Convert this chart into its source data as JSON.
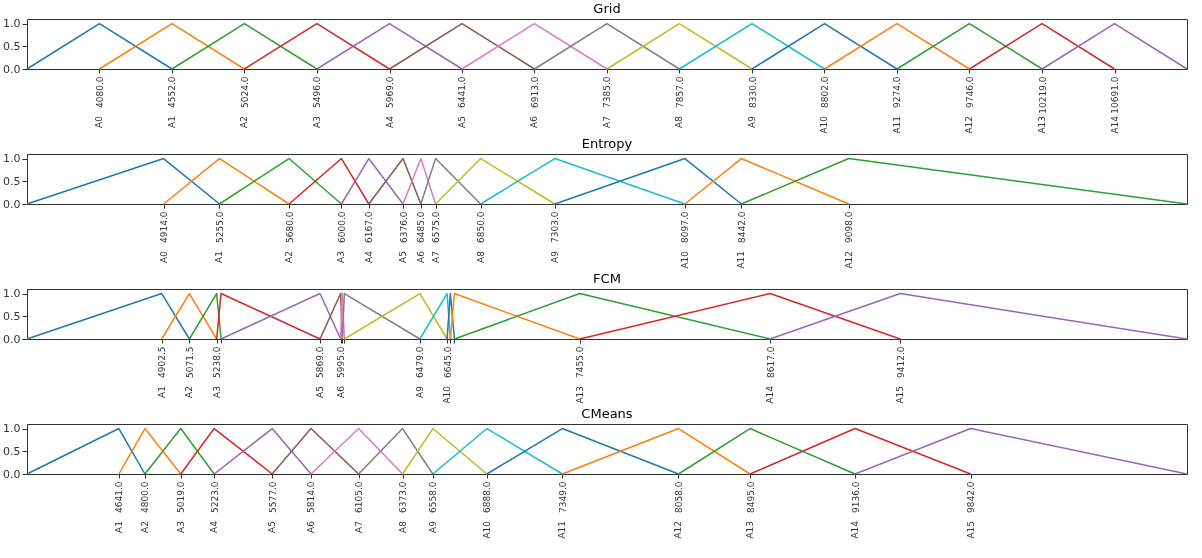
{
  "chart_data": [
    {
      "type": "line",
      "title": "Grid",
      "xlim": [
        3608,
        11163
      ],
      "ylim": [
        0,
        1.1
      ],
      "xticks": [
        {
          "value": 4080,
          "label": "4080.0"
        },
        {
          "value": 4552,
          "label": "4552.0"
        },
        {
          "value": 5024,
          "label": "5024.0"
        },
        {
          "value": 5496,
          "label": "5496.0"
        },
        {
          "value": 5969,
          "label": "5969.0"
        },
        {
          "value": 6441,
          "label": "6441.0"
        },
        {
          "value": 6913,
          "label": "6913.0"
        },
        {
          "value": 7385,
          "label": "7385.0"
        },
        {
          "value": 7857,
          "label": "7857.0"
        },
        {
          "value": 8330,
          "label": "8330.0"
        },
        {
          "value": 8802,
          "label": "8802.0"
        },
        {
          "value": 9274,
          "label": "9274.0"
        },
        {
          "value": 9746,
          "label": "9746.0"
        },
        {
          "value": 10219,
          "label": "10219.0"
        },
        {
          "value": 10691,
          "label": "10691.0"
        }
      ],
      "annotations": [
        "A0",
        "A1",
        "A2",
        "A3",
        "A4",
        "A5",
        "A6",
        "A7",
        "A8",
        "A9",
        "A10",
        "A11",
        "A12",
        "A13",
        "A14"
      ],
      "yticks": [
        {
          "value": 0,
          "label": "0.0"
        },
        {
          "value": 0.5,
          "label": "0.5"
        },
        {
          "value": 1,
          "label": "1.0"
        }
      ],
      "grid": false,
      "legend": false,
      "series": [
        {
          "color": "#1f77b4",
          "x": [
            3608,
            4080,
            4552
          ],
          "values": [
            0,
            1,
            0
          ]
        },
        {
          "color": "#ff7f0e",
          "x": [
            4080,
            4552,
            5024
          ],
          "values": [
            0,
            1,
            0
          ]
        },
        {
          "color": "#2ca02c",
          "x": [
            4552,
            5024,
            5496
          ],
          "values": [
            0,
            1,
            0
          ]
        },
        {
          "color": "#d62728",
          "x": [
            5024,
            5496,
            5969
          ],
          "values": [
            0,
            1,
            0
          ]
        },
        {
          "color": "#9467bd",
          "x": [
            5496,
            5969,
            6441
          ],
          "values": [
            0,
            1,
            0
          ]
        },
        {
          "color": "#8c564b",
          "x": [
            5969,
            6441,
            6913
          ],
          "values": [
            0,
            1,
            0
          ]
        },
        {
          "color": "#e377c2",
          "x": [
            6441,
            6913,
            7385
          ],
          "values": [
            0,
            1,
            0
          ]
        },
        {
          "color": "#7f7f7f",
          "x": [
            6913,
            7385,
            7857
          ],
          "values": [
            0,
            1,
            0
          ]
        },
        {
          "color": "#bcbd22",
          "x": [
            7385,
            7857,
            8330
          ],
          "values": [
            0,
            1,
            0
          ]
        },
        {
          "color": "#17becf",
          "x": [
            7857,
            8330,
            8802
          ],
          "values": [
            0,
            1,
            0
          ]
        },
        {
          "color": "#1f77b4",
          "x": [
            8330,
            8802,
            9274
          ],
          "values": [
            0,
            1,
            0
          ]
        },
        {
          "color": "#ff7f0e",
          "x": [
            8802,
            9274,
            9746
          ],
          "values": [
            0,
            1,
            0
          ]
        },
        {
          "color": "#2ca02c",
          "x": [
            9274,
            9746,
            10219
          ],
          "values": [
            0,
            1,
            0
          ]
        },
        {
          "color": "#d62728",
          "x": [
            9746,
            10219,
            10691
          ],
          "values": [
            0,
            1,
            0
          ]
        },
        {
          "color": "#9467bd",
          "x": [
            10219,
            10691,
            11163
          ],
          "values": [
            0,
            1,
            0
          ]
        }
      ]
    },
    {
      "type": "line",
      "title": "Entropy",
      "xlim": [
        4080,
        11163
      ],
      "ylim": [
        0,
        1.1
      ],
      "xticks": [
        {
          "value": 4914,
          "label": "4914.0"
        },
        {
          "value": 5255,
          "label": "5255.0"
        },
        {
          "value": 5680,
          "label": "5680.0"
        },
        {
          "value": 6000,
          "label": "6000.0"
        },
        {
          "value": 6167,
          "label": "6167.0"
        },
        {
          "value": 6376,
          "label": "6376.0"
        },
        {
          "value": 6485,
          "label": "6485.0"
        },
        {
          "value": 6575,
          "label": "6575.0"
        },
        {
          "value": 6850,
          "label": "6850.0"
        },
        {
          "value": 7303,
          "label": "7303.0"
        },
        {
          "value": 8097,
          "label": "8097.0"
        },
        {
          "value": 8442,
          "label": "8442.0"
        },
        {
          "value": 9098,
          "label": "9098.0"
        }
      ],
      "annotations": [
        "A0",
        "A1",
        "A2",
        "A3",
        "A4",
        "A5",
        "A6",
        "A7",
        "A8",
        "A9",
        "A10",
        "A11",
        "A12"
      ],
      "yticks": [
        {
          "value": 0,
          "label": "0.0"
        },
        {
          "value": 0.5,
          "label": "0.5"
        },
        {
          "value": 1,
          "label": "1.0"
        }
      ],
      "grid": false,
      "legend": false,
      "series": [
        {
          "color": "#1f77b4",
          "x": [
            4080,
            4914,
            5255
          ],
          "values": [
            0,
            1,
            0
          ]
        },
        {
          "color": "#ff7f0e",
          "x": [
            4914,
            5255,
            5680
          ],
          "values": [
            0,
            1,
            0
          ]
        },
        {
          "color": "#2ca02c",
          "x": [
            5255,
            5680,
            6000
          ],
          "values": [
            0,
            1,
            0
          ]
        },
        {
          "color": "#d62728",
          "x": [
            5680,
            6000,
            6167
          ],
          "values": [
            0,
            1,
            0
          ]
        },
        {
          "color": "#9467bd",
          "x": [
            6000,
            6167,
            6376
          ],
          "values": [
            0,
            1,
            0
          ]
        },
        {
          "color": "#8c564b",
          "x": [
            6167,
            6376,
            6485
          ],
          "values": [
            0,
            1,
            0
          ]
        },
        {
          "color": "#e377c2",
          "x": [
            6376,
            6485,
            6575
          ],
          "values": [
            0,
            1,
            0
          ]
        },
        {
          "color": "#7f7f7f",
          "x": [
            6485,
            6575,
            6850
          ],
          "values": [
            0,
            1,
            0
          ]
        },
        {
          "color": "#bcbd22",
          "x": [
            6575,
            6850,
            7303
          ],
          "values": [
            0,
            1,
            0
          ]
        },
        {
          "color": "#17becf",
          "x": [
            6850,
            7303,
            8097
          ],
          "values": [
            0,
            1,
            0
          ]
        },
        {
          "color": "#1f77b4",
          "x": [
            7303,
            8097,
            8442
          ],
          "values": [
            0,
            1,
            0
          ]
        },
        {
          "color": "#ff7f0e",
          "x": [
            8097,
            8442,
            9098
          ],
          "values": [
            0,
            1,
            0
          ]
        },
        {
          "color": "#2ca02c",
          "x": [
            8442,
            9098,
            11163
          ],
          "values": [
            0,
            1,
            0
          ]
        }
      ]
    },
    {
      "type": "line",
      "title": "FCM",
      "xlim": [
        4080,
        11163
      ],
      "ylim": [
        0,
        1.1
      ],
      "xticks": [
        {
          "value": 4902.5,
          "label": "4902.5"
        },
        {
          "value": 5071.5,
          "label": "5071.5"
        },
        {
          "value": 5238,
          "label": "5238.0"
        },
        {
          "value": 5265,
          "label": null
        },
        {
          "value": 5869,
          "label": "5869.0"
        },
        {
          "value": 5995,
          "label": "5995.0"
        },
        {
          "value": 6005,
          "label": null
        },
        {
          "value": 6018,
          "label": null
        },
        {
          "value": 6479,
          "label": "6479.0"
        },
        {
          "value": 6645,
          "label": "6645.0"
        },
        {
          "value": 6665,
          "label": null
        },
        {
          "value": 6690,
          "label": null
        },
        {
          "value": 7455,
          "label": "7455.0"
        },
        {
          "value": 8617,
          "label": "8617.0"
        },
        {
          "value": 9412,
          "label": "9412.0"
        }
      ],
      "annotations": [
        "A1",
        "A2",
        "A3",
        "A5",
        "A6",
        "A9",
        "A10",
        "A13",
        "A14",
        "A15"
      ],
      "yticks": [
        {
          "value": 0,
          "label": "0.0"
        },
        {
          "value": 0.5,
          "label": "0.5"
        },
        {
          "value": 1,
          "label": "1.0"
        }
      ],
      "grid": false,
      "legend": false,
      "series": [
        {
          "color": "#1f77b4",
          "x": [
            4080,
            4902.5,
            5071.5
          ],
          "values": [
            0,
            1,
            0
          ]
        },
        {
          "color": "#ff7f0e",
          "x": [
            4902.5,
            5071.5,
            5238
          ],
          "values": [
            0,
            1,
            0
          ]
        },
        {
          "color": "#2ca02c",
          "x": [
            5071.5,
            5238,
            5265
          ],
          "values": [
            0,
            1,
            0
          ]
        },
        {
          "color": "#d62728",
          "x": [
            5238,
            5265,
            5869
          ],
          "values": [
            0,
            1,
            0
          ]
        },
        {
          "color": "#9467bd",
          "x": [
            5265,
            5869,
            5995
          ],
          "values": [
            0,
            1,
            0
          ]
        },
        {
          "color": "#8c564b",
          "x": [
            5869,
            5995,
            6005
          ],
          "values": [
            0,
            1,
            0
          ]
        },
        {
          "color": "#e377c2",
          "x": [
            5995,
            6005,
            6018
          ],
          "values": [
            0,
            1,
            0
          ]
        },
        {
          "color": "#7f7f7f",
          "x": [
            6005,
            6018,
            6479
          ],
          "values": [
            0,
            1,
            0
          ]
        },
        {
          "color": "#bcbd22",
          "x": [
            6018,
            6479,
            6645
          ],
          "values": [
            0,
            1,
            0
          ]
        },
        {
          "color": "#17becf",
          "x": [
            6479,
            6645,
            6665
          ],
          "values": [
            0,
            1,
            0
          ]
        },
        {
          "color": "#1f77b4",
          "x": [
            6645,
            6665,
            6690
          ],
          "values": [
            0,
            1,
            0
          ]
        },
        {
          "color": "#ff7f0e",
          "x": [
            6665,
            6690,
            7455
          ],
          "values": [
            0,
            1,
            0
          ]
        },
        {
          "color": "#2ca02c",
          "x": [
            6690,
            7455,
            8617
          ],
          "values": [
            0,
            1,
            0
          ]
        },
        {
          "color": "#d62728",
          "x": [
            7455,
            8617,
            9412
          ],
          "values": [
            0,
            1,
            0
          ]
        },
        {
          "color": "#9467bd",
          "x": [
            8617,
            9412,
            11163
          ],
          "values": [
            0,
            1,
            0
          ]
        }
      ]
    },
    {
      "type": "line",
      "title": "CMeans",
      "xlim": [
        4080,
        11163
      ],
      "ylim": [
        0,
        1.1
      ],
      "xticks": [
        {
          "value": 4641,
          "label": "4641.0"
        },
        {
          "value": 4800,
          "label": "4800.0"
        },
        {
          "value": 5019,
          "label": "5019.0"
        },
        {
          "value": 5223,
          "label": "5223.0"
        },
        {
          "value": 5577,
          "label": "5577.0"
        },
        {
          "value": 5814,
          "label": "5814.0"
        },
        {
          "value": 6105,
          "label": "6105.0"
        },
        {
          "value": 6373,
          "label": "6373.0"
        },
        {
          "value": 6558,
          "label": "6558.0"
        },
        {
          "value": 6888,
          "label": "6888.0"
        },
        {
          "value": 7349,
          "label": "7349.0"
        },
        {
          "value": 8058,
          "label": "8058.0"
        },
        {
          "value": 8495,
          "label": "8495.0"
        },
        {
          "value": 9136,
          "label": "9136.0"
        },
        {
          "value": 9842,
          "label": "9842.0"
        }
      ],
      "annotations": [
        "A1",
        "A2",
        "A3",
        "A4",
        "A5",
        "A6",
        "A7",
        "A8",
        "A9",
        "A10",
        "A11",
        "A12",
        "A13",
        "A14",
        "A15"
      ],
      "yticks": [
        {
          "value": 0,
          "label": "0.0"
        },
        {
          "value": 0.5,
          "label": "0.5"
        },
        {
          "value": 1,
          "label": "1.0"
        }
      ],
      "grid": false,
      "legend": false,
      "series": [
        {
          "color": "#1f77b4",
          "x": [
            4080,
            4641,
            4800
          ],
          "values": [
            0,
            1,
            0
          ]
        },
        {
          "color": "#ff7f0e",
          "x": [
            4641,
            4800,
            5019
          ],
          "values": [
            0,
            1,
            0
          ]
        },
        {
          "color": "#2ca02c",
          "x": [
            4800,
            5019,
            5223
          ],
          "values": [
            0,
            1,
            0
          ]
        },
        {
          "color": "#d62728",
          "x": [
            5019,
            5223,
            5577
          ],
          "values": [
            0,
            1,
            0
          ]
        },
        {
          "color": "#9467bd",
          "x": [
            5223,
            5577,
            5814
          ],
          "values": [
            0,
            1,
            0
          ]
        },
        {
          "color": "#8c564b",
          "x": [
            5577,
            5814,
            6105
          ],
          "values": [
            0,
            1,
            0
          ]
        },
        {
          "color": "#e377c2",
          "x": [
            5814,
            6105,
            6373
          ],
          "values": [
            0,
            1,
            0
          ]
        },
        {
          "color": "#7f7f7f",
          "x": [
            6105,
            6373,
            6558
          ],
          "values": [
            0,
            1,
            0
          ]
        },
        {
          "color": "#bcbd22",
          "x": [
            6373,
            6558,
            6888
          ],
          "values": [
            0,
            1,
            0
          ]
        },
        {
          "color": "#17becf",
          "x": [
            6558,
            6888,
            7349
          ],
          "values": [
            0,
            1,
            0
          ]
        },
        {
          "color": "#1f77b4",
          "x": [
            6888,
            7349,
            8058
          ],
          "values": [
            0,
            1,
            0
          ]
        },
        {
          "color": "#ff7f0e",
          "x": [
            7349,
            8058,
            8495
          ],
          "values": [
            0,
            1,
            0
          ]
        },
        {
          "color": "#2ca02c",
          "x": [
            8058,
            8495,
            9136
          ],
          "values": [
            0,
            1,
            0
          ]
        },
        {
          "color": "#d62728",
          "x": [
            8495,
            9136,
            9842
          ],
          "values": [
            0,
            1,
            0
          ]
        },
        {
          "color": "#9467bd",
          "x": [
            9136,
            9842,
            11163
          ],
          "values": [
            0,
            1,
            0
          ]
        }
      ]
    }
  ]
}
